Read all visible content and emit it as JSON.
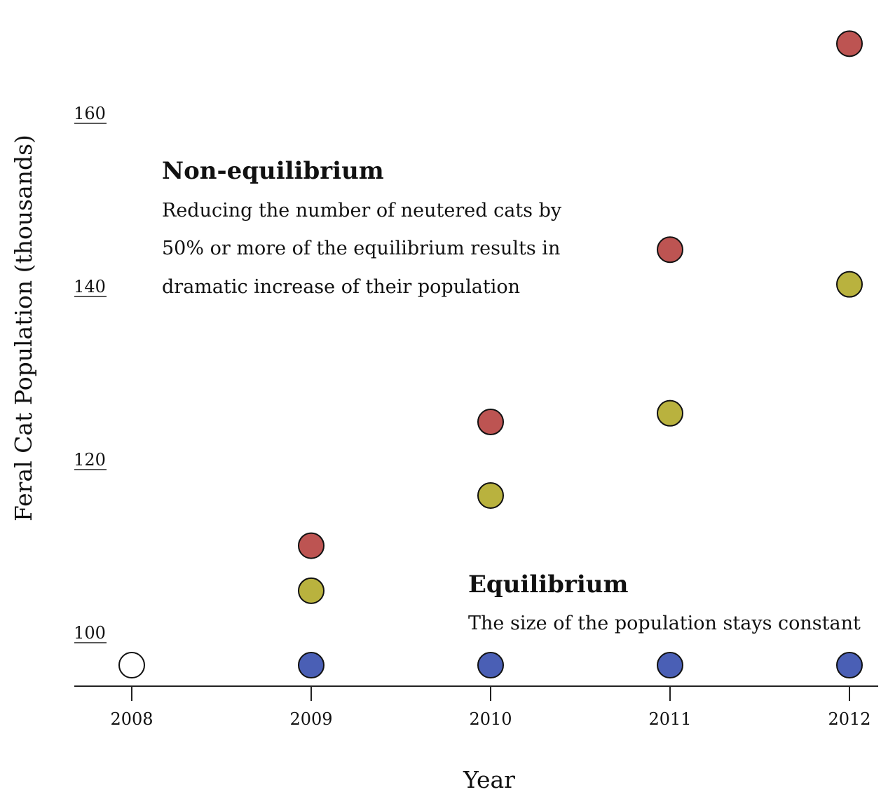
{
  "chart_data": {
    "type": "scatter",
    "title": "",
    "xlabel": "Year",
    "ylabel": "Feral Cat Population (thousands)",
    "x": [
      "2008",
      "2009",
      "2010",
      "2011",
      "2012"
    ],
    "x_ticks": [
      "2008",
      "2009",
      "2010",
      "2011",
      "2012"
    ],
    "y_ticks": [
      100,
      120,
      140,
      160
    ],
    "ylim": [
      93,
      171
    ],
    "grid": false,
    "legend": "none",
    "series": [
      {
        "color": "#4a5fb5",
        "points": [
          {
            "x": "2009",
            "y": 97
          },
          {
            "x": "2010",
            "y": 97
          },
          {
            "x": "2011",
            "y": 97
          },
          {
            "x": "2012",
            "y": 97
          }
        ]
      },
      {
        "color": "#b9b23e",
        "points": [
          {
            "x": "2009",
            "y": 105.6
          },
          {
            "x": "2010",
            "y": 116.6
          },
          {
            "x": "2011",
            "y": 126.1
          },
          {
            "x": "2012",
            "y": 141
          }
        ]
      },
      {
        "color": "#bd5452",
        "points": [
          {
            "x": "2009",
            "y": 110.8
          },
          {
            "x": "2010",
            "y": 125.1
          },
          {
            "x": "2011",
            "y": 145
          },
          {
            "x": "2012",
            "y": 168.8
          }
        ]
      },
      {
        "color": "#ffffff",
        "points": [
          {
            "x": "2008",
            "y": 97
          }
        ]
      }
    ],
    "annotations": [
      {
        "title": "Non-equilibrium",
        "lines": [
          "Reducing the number of neutered cats  by",
          "50% or more of the equilibrium results in",
          "dramatic increase of their population"
        ]
      },
      {
        "title": "Equilibrium",
        "lines": [
          "The size of the population stays constant"
        ]
      }
    ]
  }
}
